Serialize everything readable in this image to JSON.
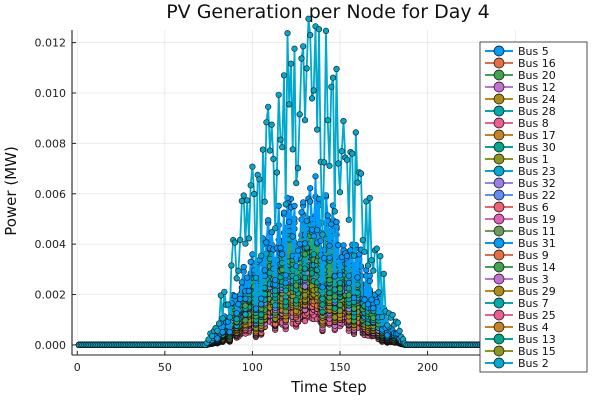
{
  "chart_data": {
    "type": "line",
    "title": "PV Generation per Node for Day 4",
    "xlabel": "Time Step",
    "ylabel": "Power (MW)",
    "xlim": [
      -3,
      291
    ],
    "ylim": [
      -0.0004,
      0.0125
    ],
    "x_ticks": [
      0,
      50,
      100,
      150,
      200,
      250
    ],
    "x_tick_labels": [
      "0",
      "50",
      "100",
      "150",
      "200",
      ""
    ],
    "y_ticks": [
      0.0,
      0.002,
      0.004,
      0.006,
      0.008,
      0.01,
      0.012
    ],
    "y_tick_labels": [
      "0.000",
      "0.002",
      "0.004",
      "0.006",
      "0.008",
      "0.010",
      "0.012"
    ],
    "grid": true,
    "legend_position": "right",
    "x_range": [
      1,
      288
    ],
    "daylight_range": [
      73,
      188
    ],
    "series_labels": [
      "Bus 5",
      "Bus 16",
      "Bus 20",
      "Bus 12",
      "Bus 24",
      "Bus 28",
      "Bus 8",
      "Bus 17",
      "Bus 30",
      "Bus 1",
      "Bus 23",
      "Bus 32",
      "Bus 22",
      "Bus 6",
      "Bus 19",
      "Bus 11",
      "Bus 31",
      "Bus 9",
      "Bus 14",
      "Bus 3",
      "Bus 29",
      "Bus 7",
      "Bus 25",
      "Bus 4",
      "Bus 13",
      "Bus 15",
      "Bus 2"
    ],
    "series_colors": [
      "#009AFA",
      "#E36F47",
      "#3EA44E",
      "#C371D2",
      "#AC8D18",
      "#00A9AD",
      "#ED5D92",
      "#C68225",
      "#00A98D",
      "#8E971D",
      "#00A9CD",
      "#9B7FE8",
      "#618DF6",
      "#F05F73",
      "#DD64B5",
      "#6B9D59",
      "#009AFA",
      "#E36F47",
      "#3EA44E",
      "#C371D2",
      "#AC8D18",
      "#00A9AD",
      "#ED5D92",
      "#C68225",
      "#00A98D",
      "#8E971D",
      "#00A9CD"
    ],
    "series_peak_MW": [
      0.0061,
      0.0022,
      0.0048,
      0.0021,
      0.0025,
      0.0045,
      0.0015,
      0.0024,
      0.0042,
      0.0027,
      0.0041,
      0.0036,
      0.0039,
      0.0017,
      0.0019,
      0.003,
      0.0058,
      0.002,
      0.0033,
      0.0019,
      0.0028,
      0.0052,
      0.0014,
      0.0023,
      0.0036,
      0.0031,
      0.0122
    ]
  }
}
